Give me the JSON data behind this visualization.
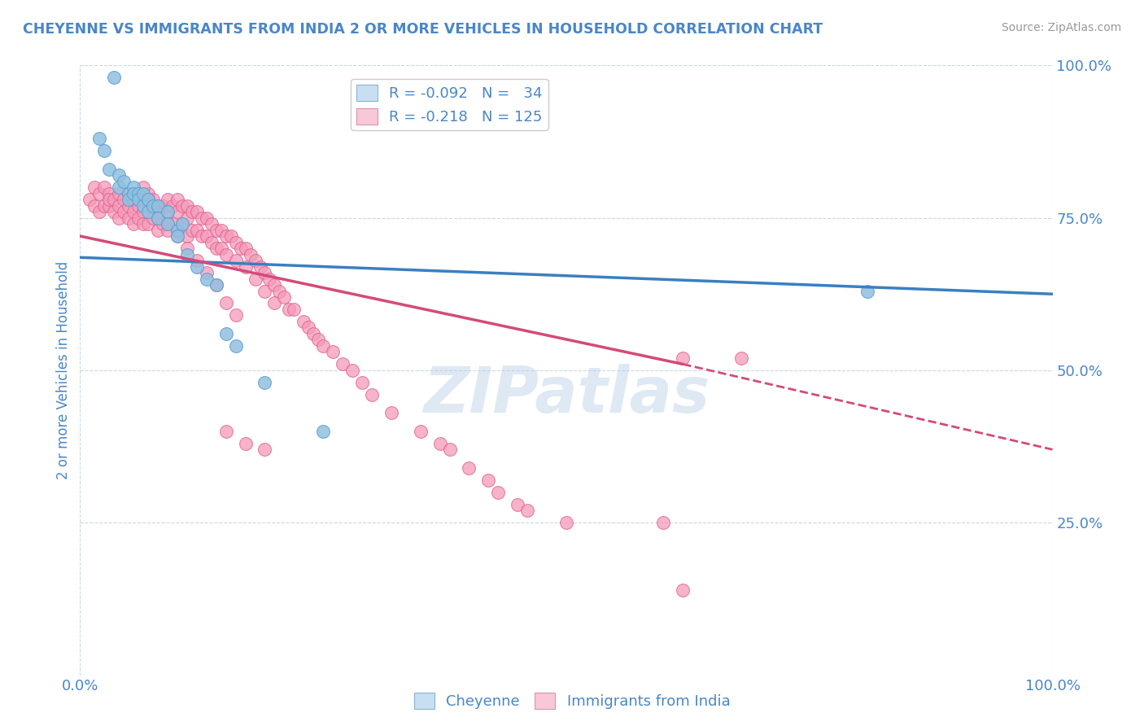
{
  "title": "CHEYENNE VS IMMIGRANTS FROM INDIA 2 OR MORE VEHICLES IN HOUSEHOLD CORRELATION CHART",
  "source": "Source: ZipAtlas.com",
  "ylabel": "2 or more Vehicles in Household",
  "xlabel_cheyenne": "Cheyenne",
  "xlabel_india": "Immigrants from India",
  "xlim": [
    0.0,
    1.0
  ],
  "ylim": [
    0.0,
    1.0
  ],
  "ytick_values": [
    0.0,
    0.25,
    0.5,
    0.75,
    1.0
  ],
  "xtick_values": [
    0.0,
    1.0
  ],
  "blue_color": "#92c0e0",
  "blue_edge": "#5a9fd4",
  "pink_color": "#f59ab8",
  "pink_edge": "#e06090",
  "trend_blue": "#3a7fc1",
  "trend_pink": "#d44a7a",
  "watermark": "ZIPatlas",
  "background_color": "#ffffff",
  "grid_color": "#c8d8e8",
  "title_color": "#4a86c8",
  "axis_color": "#4a86c8",
  "blue_scatter_x": [
    0.035,
    0.02,
    0.025,
    0.03,
    0.04,
    0.04,
    0.045,
    0.05,
    0.05,
    0.055,
    0.055,
    0.06,
    0.06,
    0.065,
    0.065,
    0.07,
    0.07,
    0.075,
    0.08,
    0.08,
    0.09,
    0.09,
    0.1,
    0.1,
    0.105,
    0.11,
    0.12,
    0.13,
    0.14,
    0.15,
    0.16,
    0.19,
    0.81,
    0.25
  ],
  "blue_scatter_y": [
    0.98,
    0.88,
    0.86,
    0.83,
    0.82,
    0.8,
    0.81,
    0.79,
    0.78,
    0.8,
    0.79,
    0.79,
    0.78,
    0.77,
    0.79,
    0.78,
    0.76,
    0.77,
    0.77,
    0.75,
    0.76,
    0.74,
    0.73,
    0.72,
    0.74,
    0.69,
    0.67,
    0.65,
    0.64,
    0.56,
    0.54,
    0.48,
    0.63,
    0.4
  ],
  "pink_scatter_x": [
    0.01,
    0.015,
    0.015,
    0.02,
    0.02,
    0.025,
    0.025,
    0.03,
    0.03,
    0.03,
    0.035,
    0.035,
    0.04,
    0.04,
    0.04,
    0.045,
    0.045,
    0.05,
    0.05,
    0.05,
    0.055,
    0.055,
    0.055,
    0.06,
    0.06,
    0.06,
    0.065,
    0.065,
    0.065,
    0.07,
    0.07,
    0.07,
    0.075,
    0.075,
    0.08,
    0.08,
    0.08,
    0.085,
    0.085,
    0.09,
    0.09,
    0.09,
    0.095,
    0.095,
    0.1,
    0.1,
    0.1,
    0.105,
    0.105,
    0.11,
    0.11,
    0.11,
    0.115,
    0.115,
    0.12,
    0.12,
    0.125,
    0.125,
    0.13,
    0.13,
    0.135,
    0.135,
    0.14,
    0.14,
    0.145,
    0.145,
    0.15,
    0.15,
    0.155,
    0.16,
    0.16,
    0.165,
    0.17,
    0.17,
    0.175,
    0.18,
    0.18,
    0.185,
    0.19,
    0.19,
    0.195,
    0.2,
    0.2,
    0.205,
    0.21,
    0.215,
    0.22,
    0.23,
    0.235,
    0.24,
    0.245,
    0.25,
    0.26,
    0.27,
    0.28,
    0.29,
    0.3,
    0.32,
    0.35,
    0.37,
    0.38,
    0.4,
    0.42,
    0.43,
    0.45,
    0.46,
    0.5,
    0.6,
    0.62,
    0.065,
    0.07,
    0.08,
    0.09,
    0.1,
    0.11,
    0.12,
    0.13,
    0.14,
    0.15,
    0.16,
    0.62,
    0.68,
    0.15,
    0.17,
    0.19
  ],
  "pink_scatter_y": [
    0.78,
    0.8,
    0.77,
    0.79,
    0.76,
    0.8,
    0.77,
    0.79,
    0.77,
    0.78,
    0.78,
    0.76,
    0.79,
    0.77,
    0.75,
    0.78,
    0.76,
    0.79,
    0.77,
    0.75,
    0.78,
    0.76,
    0.74,
    0.79,
    0.77,
    0.75,
    0.78,
    0.76,
    0.74,
    0.79,
    0.77,
    0.74,
    0.78,
    0.75,
    0.77,
    0.75,
    0.73,
    0.77,
    0.74,
    0.78,
    0.76,
    0.73,
    0.77,
    0.74,
    0.78,
    0.76,
    0.73,
    0.77,
    0.74,
    0.77,
    0.75,
    0.72,
    0.76,
    0.73,
    0.76,
    0.73,
    0.75,
    0.72,
    0.75,
    0.72,
    0.74,
    0.71,
    0.73,
    0.7,
    0.73,
    0.7,
    0.72,
    0.69,
    0.72,
    0.71,
    0.68,
    0.7,
    0.7,
    0.67,
    0.69,
    0.68,
    0.65,
    0.67,
    0.66,
    0.63,
    0.65,
    0.64,
    0.61,
    0.63,
    0.62,
    0.6,
    0.6,
    0.58,
    0.57,
    0.56,
    0.55,
    0.54,
    0.53,
    0.51,
    0.5,
    0.48,
    0.46,
    0.43,
    0.4,
    0.38,
    0.37,
    0.34,
    0.32,
    0.3,
    0.28,
    0.27,
    0.25,
    0.25,
    0.14,
    0.8,
    0.78,
    0.76,
    0.74,
    0.72,
    0.7,
    0.68,
    0.66,
    0.64,
    0.61,
    0.59,
    0.52,
    0.52,
    0.4,
    0.38,
    0.37
  ],
  "blue_trendline": [
    0.0,
    1.0,
    0.685,
    0.625
  ],
  "pink_trendline_solid": [
    0.0,
    0.62,
    0.72,
    0.51
  ],
  "pink_trendline_dashed": [
    0.62,
    1.0,
    0.51,
    0.37
  ]
}
